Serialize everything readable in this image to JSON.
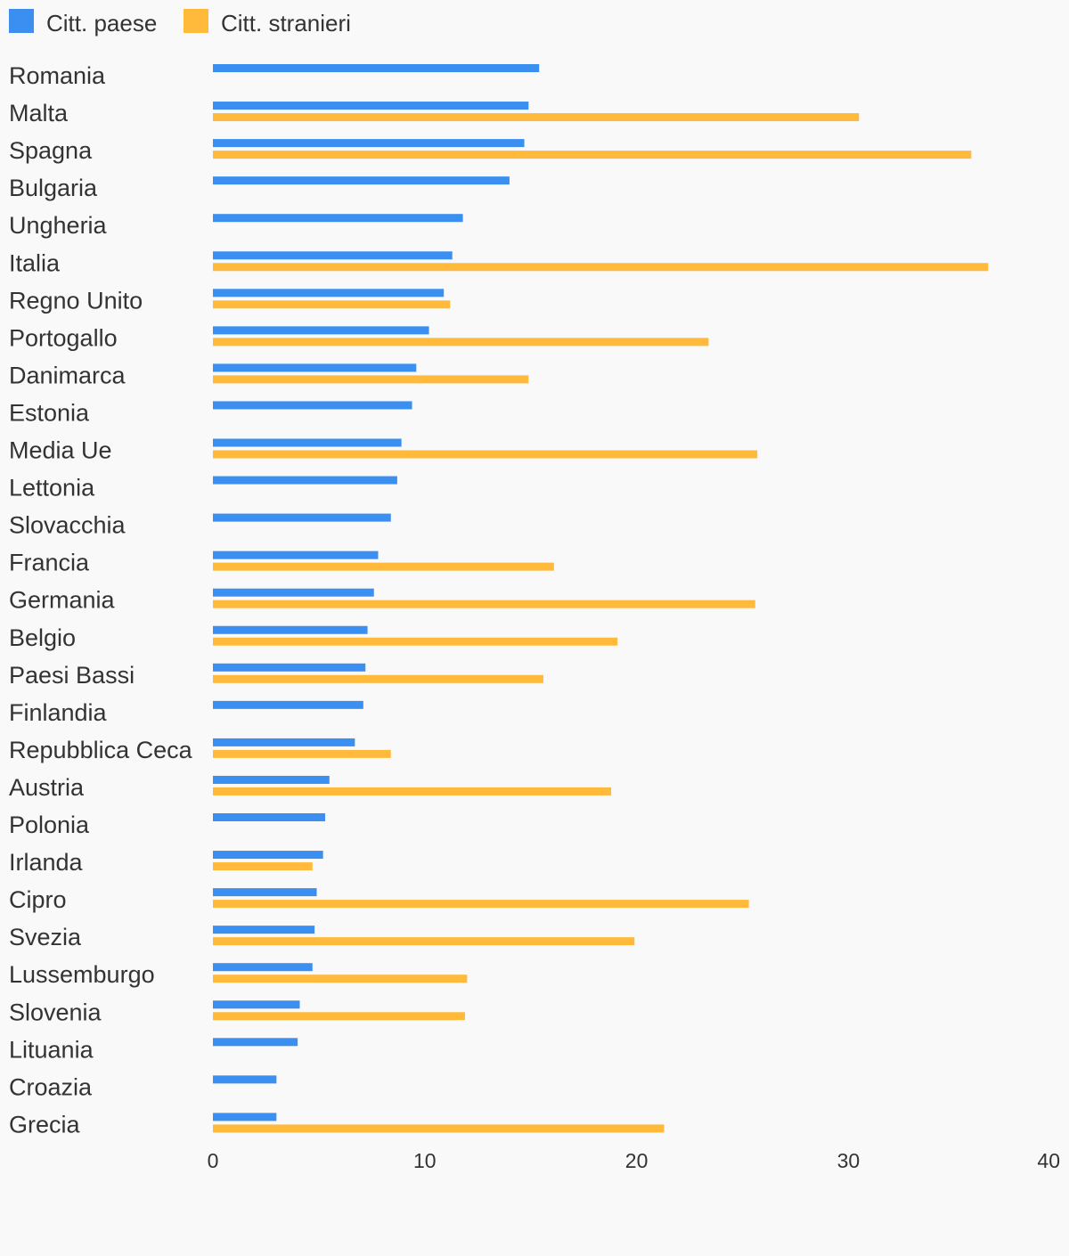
{
  "chart_data": {
    "type": "bar",
    "orientation": "horizontal",
    "categories": [
      "Romania",
      "Malta",
      "Spagna",
      "Bulgaria",
      "Ungheria",
      "Italia",
      "Regno Unito",
      "Portogallo",
      "Danimarca",
      "Estonia",
      "Media Ue",
      "Lettonia",
      "Slovacchia",
      "Francia",
      "Germania",
      "Belgio",
      "Paesi Bassi",
      "Finlandia",
      "Repubblica Ceca",
      "Austria",
      "Polonia",
      "Irlanda",
      "Cipro",
      "Svezia",
      "Lussemburgo",
      "Slovenia",
      "Lituania",
      "Croazia",
      "Grecia"
    ],
    "series": [
      {
        "name": "Citt. paese",
        "color": "#3a8ff0",
        "values": [
          15.4,
          14.9,
          14.7,
          14.0,
          11.8,
          11.3,
          10.9,
          10.2,
          9.6,
          9.4,
          8.9,
          8.7,
          8.4,
          7.8,
          7.6,
          7.3,
          7.2,
          7.1,
          6.7,
          5.5,
          5.3,
          5.2,
          4.9,
          4.8,
          4.7,
          4.1,
          4.0,
          3.0,
          3.0
        ]
      },
      {
        "name": "Citt. stranieri",
        "color": "#ffba3b",
        "values": [
          null,
          30.5,
          35.8,
          null,
          null,
          36.6,
          11.2,
          23.4,
          14.9,
          null,
          25.7,
          null,
          null,
          16.1,
          25.6,
          19.1,
          15.6,
          null,
          8.4,
          18.8,
          null,
          4.7,
          25.3,
          19.9,
          12.0,
          11.9,
          null,
          null,
          21.3
        ]
      }
    ],
    "x_ticks": [
      "0",
      "10",
      "20",
      "30",
      "40"
    ],
    "xlim": [
      0,
      40
    ],
    "grid": false,
    "legend_position": "top-left"
  }
}
